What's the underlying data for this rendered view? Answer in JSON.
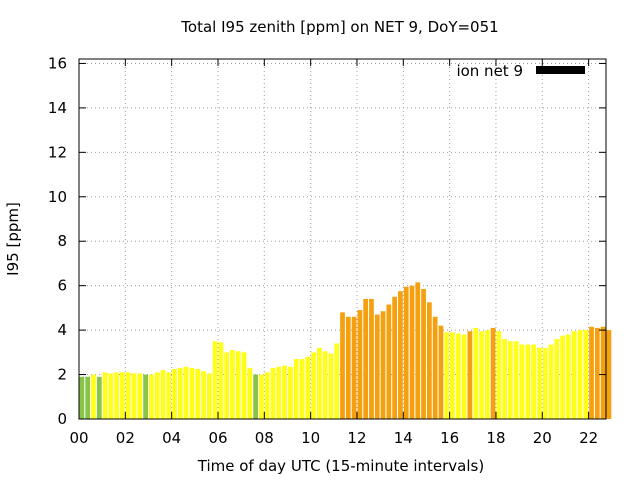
{
  "chart_data": {
    "type": "bar",
    "title": "Total I95 zenith [ppm] on NET 9, DoY=051",
    "xlabel": "Time of day UTC (15-minute intervals)",
    "ylabel": "I95 [ppm]",
    "ylim": [
      0,
      16.2
    ],
    "xlim": [
      0,
      22.75
    ],
    "x_ticks": [
      "00",
      "02",
      "04",
      "06",
      "08",
      "10",
      "12",
      "14",
      "16",
      "18",
      "20",
      "22"
    ],
    "y_ticks": [
      "0",
      "2",
      "4",
      "6",
      "8",
      "10",
      "12",
      "14",
      "16"
    ],
    "grid": true,
    "legend": {
      "position": "top-right",
      "label": "ion net 9",
      "color": "#000000"
    },
    "bar_interval_hours": 0.25,
    "colors": {
      "green": "#88c34a",
      "yellow": "#ffff1a",
      "gold": "#f2cc1a",
      "orange": "#f5a00f"
    },
    "values": [
      1.9,
      1.9,
      2.0,
      1.9,
      2.1,
      2.05,
      2.1,
      2.1,
      2.1,
      2.05,
      2.05,
      2.0,
      2.0,
      2.1,
      2.2,
      2.1,
      2.25,
      2.3,
      2.35,
      2.3,
      2.25,
      2.15,
      2.05,
      3.5,
      3.45,
      3.0,
      3.1,
      3.05,
      3.0,
      2.3,
      2.0,
      2.0,
      2.1,
      2.3,
      2.35,
      2.4,
      2.35,
      2.7,
      2.7,
      2.8,
      3.0,
      3.2,
      3.05,
      2.95,
      3.4,
      4.8,
      4.6,
      4.6,
      4.9,
      5.4,
      5.4,
      4.7,
      4.85,
      5.15,
      5.5,
      5.75,
      5.95,
      6.0,
      6.15,
      5.85,
      5.25,
      4.6,
      4.2,
      3.9,
      3.9,
      3.85,
      3.8,
      3.95,
      4.1,
      3.95,
      4.0,
      4.1,
      3.95,
      3.6,
      3.5,
      3.5,
      3.35,
      3.35,
      3.35,
      3.2,
      3.2,
      3.35,
      3.6,
      3.75,
      3.8,
      3.95,
      4.0,
      4.0,
      4.15,
      4.1,
      4.15,
      4.0
    ],
    "bar_colors": [
      "green",
      "green",
      "yellow",
      "green",
      "yellow",
      "yellow",
      "yellow",
      "yellow",
      "yellow",
      "yellow",
      "yellow",
      "green",
      "yellow",
      "yellow",
      "yellow",
      "yellow",
      "yellow",
      "yellow",
      "yellow",
      "yellow",
      "yellow",
      "yellow",
      "yellow",
      "yellow",
      "yellow",
      "yellow",
      "yellow",
      "yellow",
      "yellow",
      "yellow",
      "green",
      "yellow",
      "yellow",
      "yellow",
      "yellow",
      "yellow",
      "yellow",
      "yellow",
      "yellow",
      "yellow",
      "yellow",
      "yellow",
      "yellow",
      "yellow",
      "yellow",
      "orange",
      "orange",
      "orange",
      "orange",
      "orange",
      "orange",
      "orange",
      "orange",
      "orange",
      "orange",
      "orange",
      "orange",
      "orange",
      "orange",
      "orange",
      "orange",
      "orange",
      "orange",
      "yellow",
      "yellow",
      "yellow",
      "yellow",
      "orange",
      "yellow",
      "yellow",
      "yellow",
      "orange",
      "yellow",
      "yellow",
      "yellow",
      "yellow",
      "yellow",
      "yellow",
      "yellow",
      "yellow",
      "yellow",
      "yellow",
      "yellow",
      "yellow",
      "yellow",
      "yellow",
      "yellow",
      "yellow",
      "orange",
      "orange",
      "orange",
      "orange"
    ]
  }
}
